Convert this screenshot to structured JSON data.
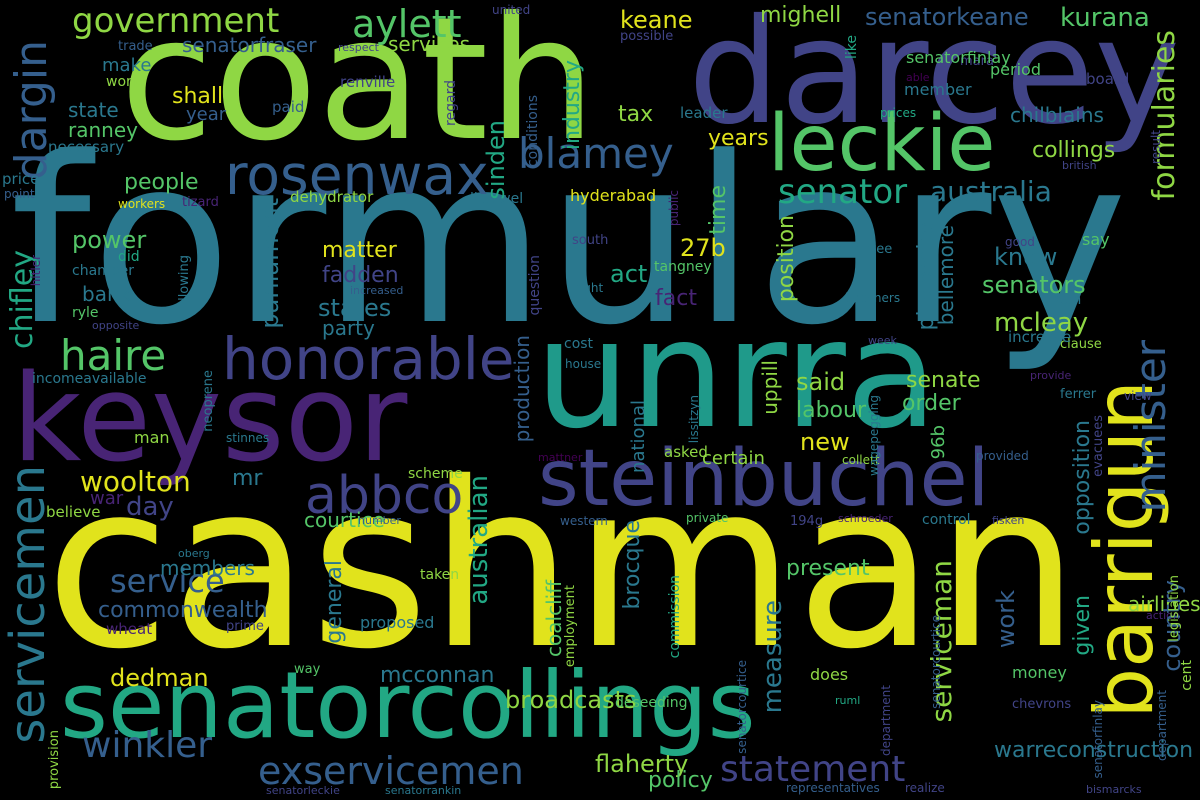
{
  "palette": {
    "background": "#000000",
    "yellow": "#e1e31c",
    "green": "#8fd744",
    "lightgreen": "#54c568",
    "teal": "#22a884",
    "cyan": "#1f9a8a",
    "blue": "#2a788e",
    "slate": "#355f8d",
    "indigo": "#414487",
    "purple": "#482475",
    "darkpurple": "#440154"
  },
  "words": [
    "coath",
    "darcey",
    "formulary",
    "keysor",
    "unrra",
    "cashman",
    "senatorcollings",
    "steinbuchel",
    "barrigun",
    "leckie",
    "honorable",
    "rosenwax",
    "servicemen",
    "abbco",
    "government",
    "aylett",
    "dargin",
    "blamey",
    "haire",
    "winkler",
    "exservicemen",
    "senator",
    "australia",
    "minister",
    "formularies",
    "senatorkeane",
    "kurana",
    "keane",
    "mighell",
    "senatorfraser",
    "services",
    "make",
    "world",
    "state",
    "ranney",
    "necessary",
    "shall",
    "year",
    "paid",
    "renville",
    "industry",
    "sinden",
    "tax",
    "leader",
    "years",
    "collings",
    "chilblains",
    "people",
    "parliament",
    "dehydrator",
    "hyderabad",
    "listowel",
    "tizard",
    "workers",
    "price",
    "point",
    "time",
    "position",
    "say",
    "power",
    "chifley",
    "matter",
    "fadden",
    "27b",
    "pincombe",
    "bellemore",
    "know",
    "senators",
    "rixon",
    "states",
    "bank",
    "party",
    "act",
    "fact",
    "tangney",
    "mcleay",
    "said",
    "senate",
    "order",
    "labour",
    "new",
    "uppill",
    "national",
    "production",
    "96b",
    "opposition",
    "country",
    "bretton",
    "great",
    "woolton",
    "mr",
    "day",
    "war",
    "courtice",
    "service",
    "members",
    "commonwealth",
    "general",
    "australian",
    "coalcliff",
    "brocque",
    "serviceman",
    "work",
    "given",
    "present",
    "airlines",
    "warreconstruction",
    "mcconnan",
    "dedman",
    "broadcasts",
    "deseeding",
    "measure",
    "flaherty",
    "policy",
    "statement",
    "proposed",
    "wheat",
    "believe",
    "man",
    "certain",
    "asked",
    "does",
    "money",
    "cent",
    "trade",
    "respect",
    "united",
    "possible",
    "regard",
    "conditions",
    "board",
    "mara",
    "able",
    "period",
    "member",
    "prices",
    "like",
    "british",
    "result",
    "south",
    "right",
    "committee",
    "did",
    "chamber",
    "public",
    "increased",
    "ryle",
    "following",
    "opposite",
    "incomeavailable",
    "hitler",
    "cost",
    "house",
    "stinnes",
    "mattner",
    "neoprene",
    "collett",
    "lissitzyn",
    "provided",
    "view",
    "ferrer",
    "good",
    "provide",
    "clause",
    "increase",
    "week",
    "baconers",
    "wagepegging",
    "scheme",
    "western",
    "private",
    "194g",
    "schroeder",
    "control",
    "fisken",
    "legislation",
    "number",
    "oberg",
    "taken",
    "question",
    "evacuees",
    "prime",
    "employment",
    "commission",
    "department",
    "senatorcourtice",
    "senatorfinlay",
    "action",
    "chevrons",
    "ruml",
    "way",
    "provision",
    "senatorleckie",
    "senatorrankin",
    "representatives",
    "realize",
    "bismarcks",
    "pay"
  ]
}
